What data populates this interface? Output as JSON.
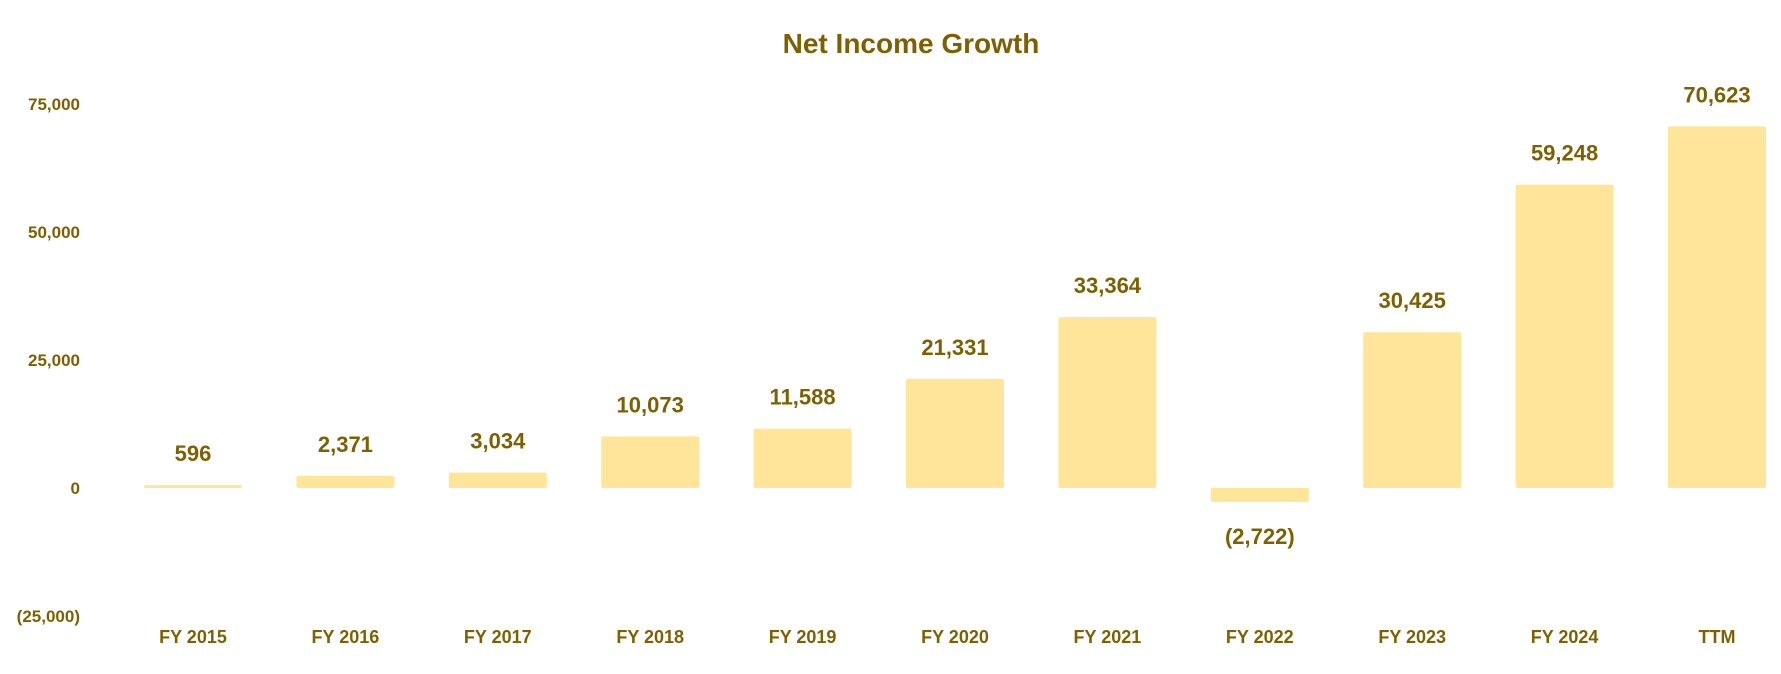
{
  "colors": {
    "bar": "#FFE599",
    "text": "#7F6000",
    "background": "#FFFFFF"
  },
  "chart_data": {
    "type": "bar",
    "title": "Net Income Growth",
    "xlabel": "",
    "ylabel": "",
    "ylim": [
      -25000,
      75000
    ],
    "grid": false,
    "legend": "none",
    "y_ticks": [
      {
        "value": 75000,
        "label": "75,000"
      },
      {
        "value": 50000,
        "label": "50,000"
      },
      {
        "value": 25000,
        "label": "25,000"
      },
      {
        "value": 0,
        "label": "0"
      },
      {
        "value": -25000,
        "label": "(25,000)"
      }
    ],
    "categories": [
      "FY 2015",
      "FY 2016",
      "FY 2017",
      "FY 2018",
      "FY 2019",
      "FY 2020",
      "FY 2021",
      "FY 2022",
      "FY 2023",
      "FY 2024",
      "TTM"
    ],
    "values": [
      596,
      2371,
      3034,
      10073,
      11588,
      21331,
      33364,
      -2722,
      30425,
      59248,
      70623
    ],
    "data_labels": [
      "596",
      "2,371",
      "3,034",
      "10,073",
      "11,588",
      "21,331",
      "33,364",
      "(2,722)",
      "30,425",
      "59,248",
      "70,623"
    ]
  }
}
